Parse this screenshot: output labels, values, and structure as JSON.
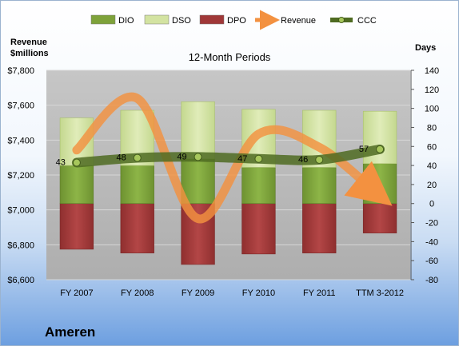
{
  "chart_data": {
    "type": "bar",
    "title": "12-Month Periods",
    "company": "Ameren",
    "left_axis_label_lines": [
      "Revenue",
      "$millions"
    ],
    "right_axis_label": "Days",
    "categories": [
      "FY 2007",
      "FY 2008",
      "FY 2009",
      "FY 2010",
      "FY 2011",
      "TTM 3-2012"
    ],
    "left_axis": {
      "min": 6600,
      "max": 7800,
      "step": 200,
      "tick_labels": [
        "$6,600",
        "$6,800",
        "$7,000",
        "$7,200",
        "$7,400",
        "$7,600",
        "$7,800"
      ]
    },
    "right_axis": {
      "min": -80,
      "max": 140,
      "step": 20,
      "tick_labels": [
        "-80",
        "-60",
        "-40",
        "-20",
        "0",
        "20",
        "40",
        "60",
        "80",
        "100",
        "120",
        "140"
      ]
    },
    "series": [
      {
        "name": "DIO",
        "axis": "right",
        "kind": "stacked-bar",
        "values": [
          40,
          40,
          47,
          38,
          38,
          42
        ]
      },
      {
        "name": "DSO",
        "axis": "right",
        "kind": "stacked-bar",
        "values": [
          50,
          58,
          60,
          61,
          60,
          55
        ]
      },
      {
        "name": "DPO",
        "axis": "right",
        "kind": "stacked-bar",
        "values": [
          -48,
          -52,
          -64,
          -53,
          -52,
          -31
        ]
      },
      {
        "name": "Revenue",
        "axis": "left",
        "kind": "line",
        "values": [
          7343,
          7639,
          6950,
          7435,
          7359,
          7080
        ]
      },
      {
        "name": "CCC",
        "axis": "right",
        "kind": "line",
        "values": [
          43,
          48,
          49,
          47,
          46,
          57
        ],
        "labels": [
          "43",
          "48",
          "49",
          "47",
          "46",
          "57"
        ]
      }
    ],
    "legend": [
      "DIO",
      "DSO",
      "DPO",
      "Revenue",
      "CCC"
    ],
    "legend_position": "top",
    "colors": {
      "DIO": "#7ea23a",
      "DSO": "#d3e3a1",
      "DPO": "#a03838",
      "Revenue": "#f39140",
      "CCC": "#4f6b22",
      "plot_bg": "#bcbcbc"
    },
    "grid": true
  }
}
